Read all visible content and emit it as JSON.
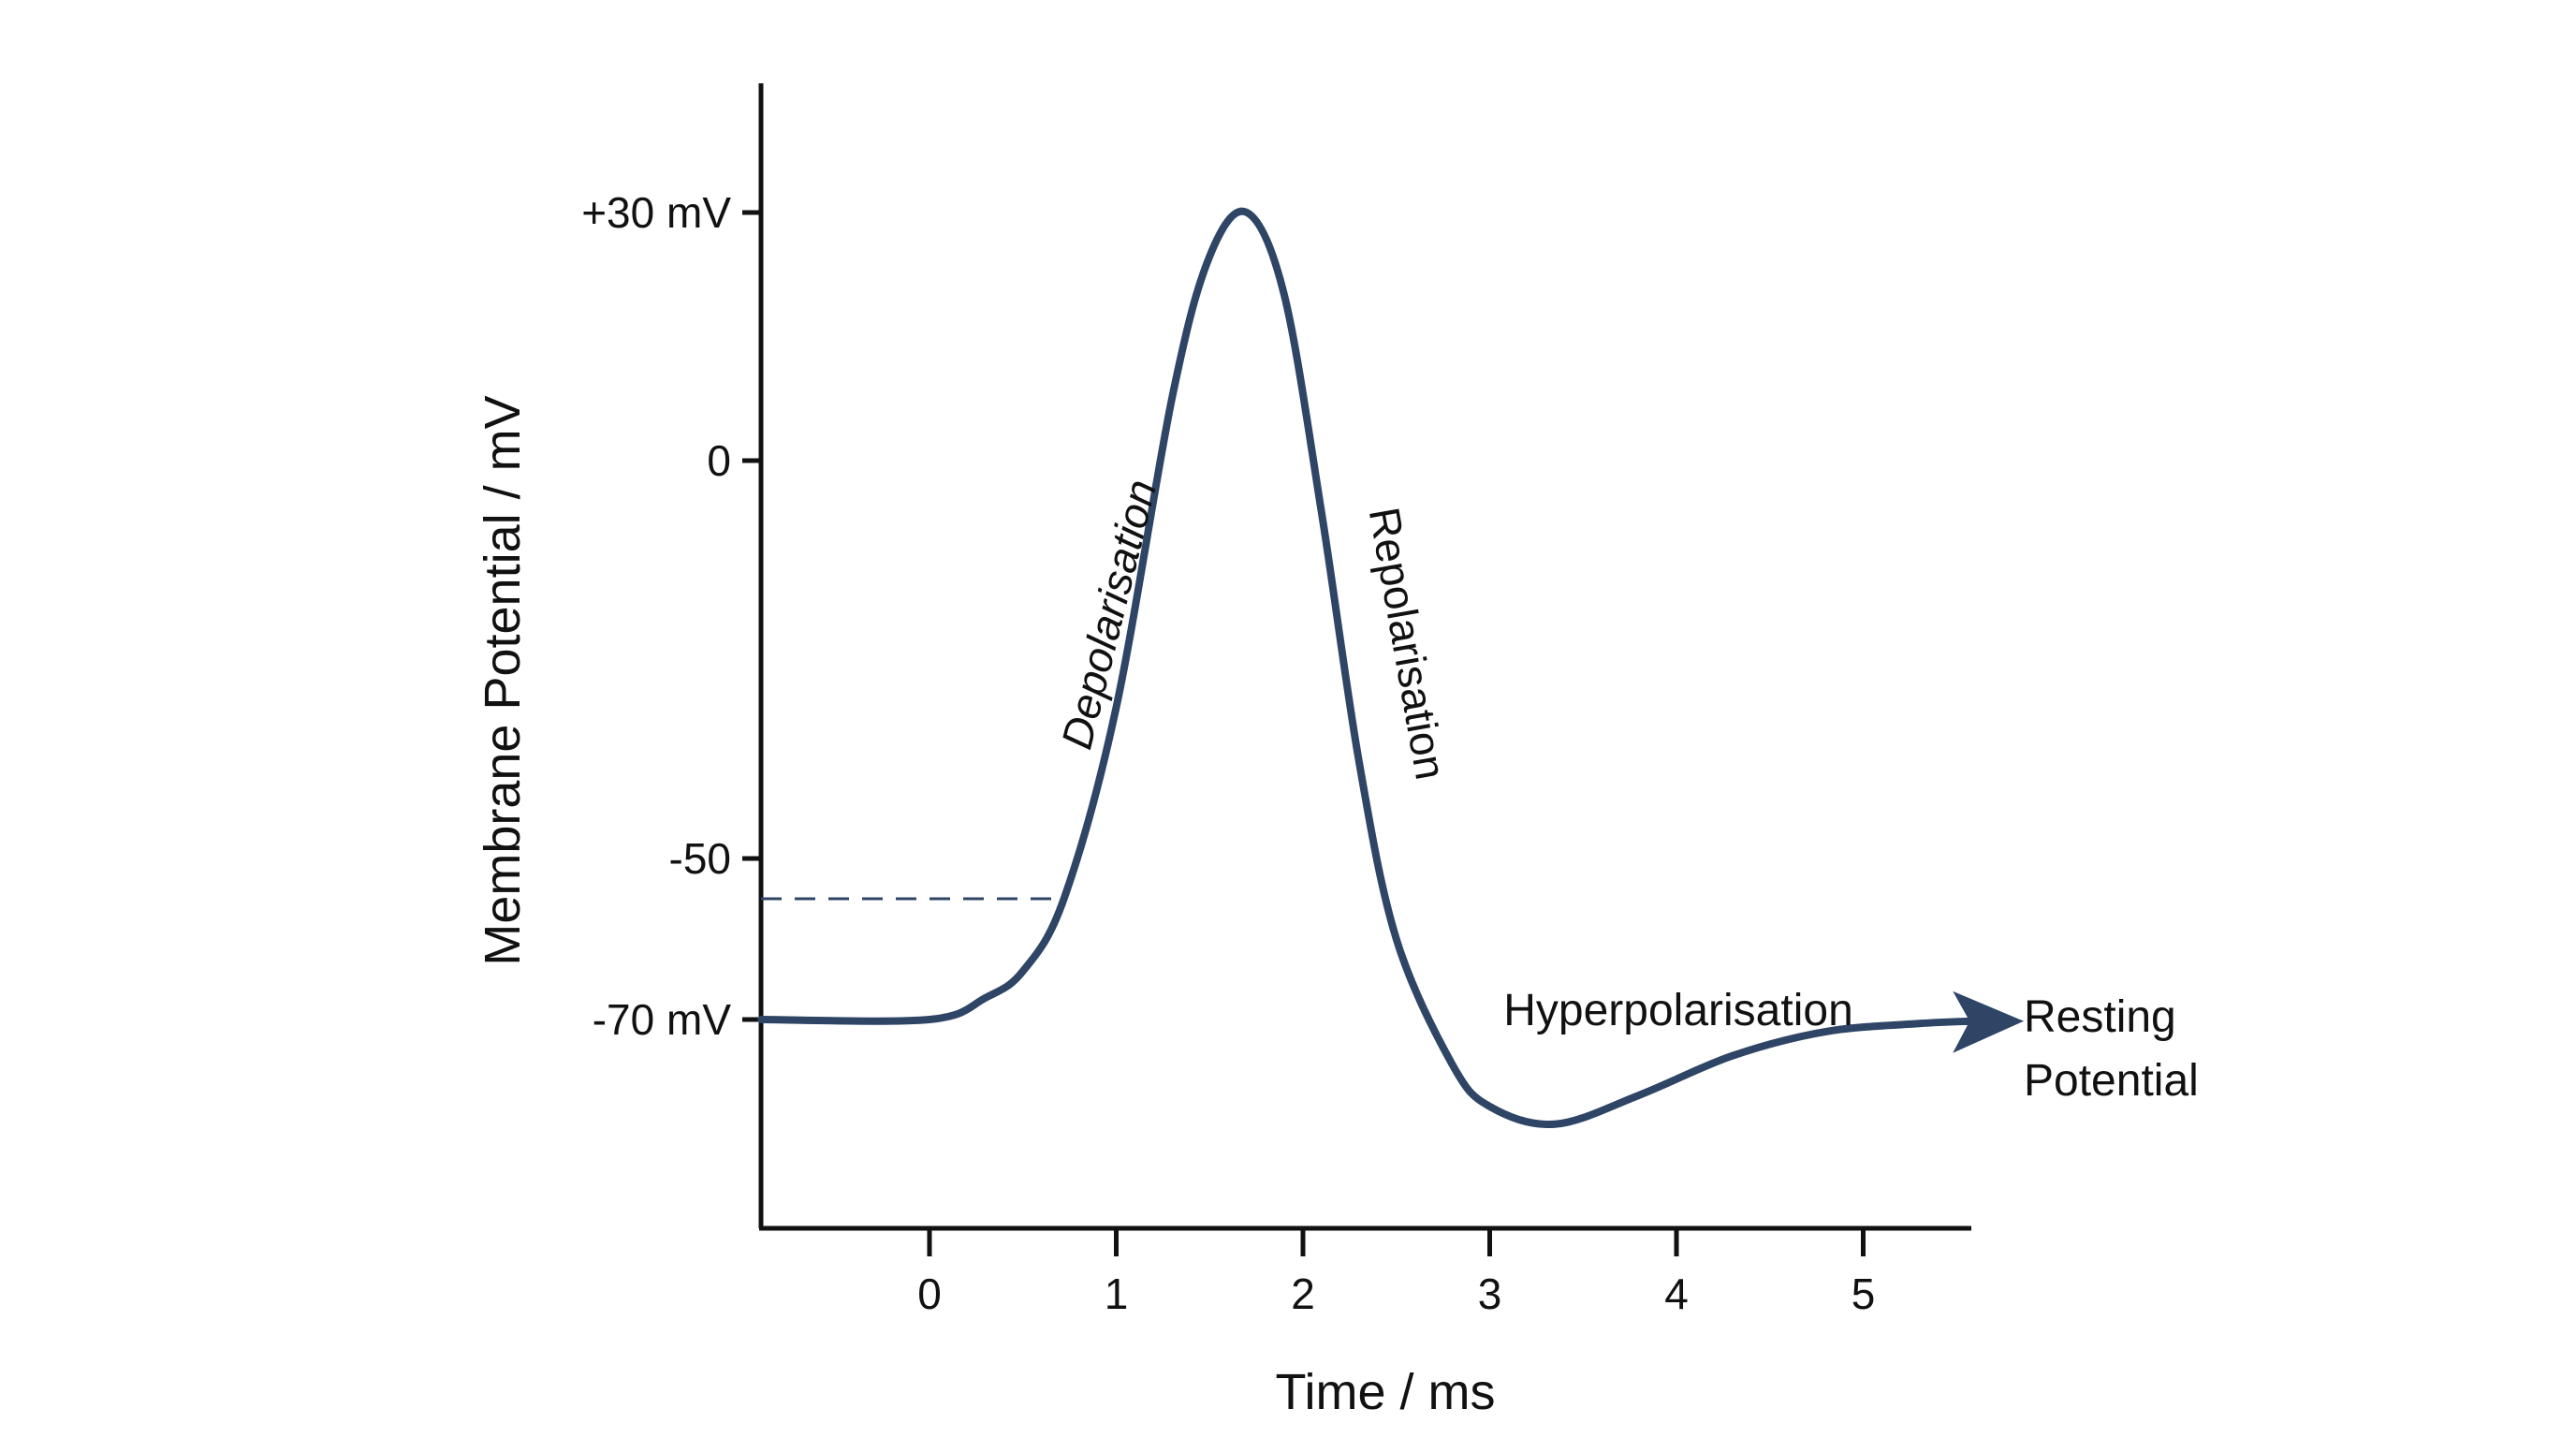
{
  "chart_data": {
    "type": "line",
    "xlabel": "Time / ms",
    "ylabel": "Membrane Potential / mV",
    "xlim": [
      -0.9,
      5.72
    ],
    "x_ticks": [
      0,
      1,
      2,
      3,
      4,
      5
    ],
    "x_tick_labels": [
      "0",
      "1",
      "2",
      "3",
      "4",
      "5"
    ],
    "y_ticks": [
      30,
      0,
      -50,
      -70
    ],
    "y_tick_labels": [
      "+30 mV",
      "0",
      "-50",
      "-70 mV"
    ],
    "threshold_mV": -55,
    "grid": false,
    "line_color": "#2f4566",
    "series": [
      {
        "x": [
          -0.9,
          0,
          0.3,
          0.5,
          0.72,
          1.0,
          1.3,
          1.5,
          1.7,
          1.9,
          2.1,
          2.3,
          2.5,
          2.8,
          3.0,
          3.35,
          3.8,
          4.3,
          4.8,
          5.3,
          5.58
        ],
        "y": [
          -70,
          -70,
          -67.3,
          -64,
          -55,
          -31,
          7.7,
          24.7,
          30,
          20,
          -6.6,
          -37.8,
          -60,
          -75.6,
          -80.8,
          -83,
          -79.4,
          -74.5,
          -71.5,
          -70.5,
          -70.2
        ]
      }
    ],
    "annotations": {
      "depolarisation": "Depolarisation",
      "repolarisation": "Repolarisation",
      "hyperpolarisation": "Hyperpolarisation",
      "resting_line1": "Resting",
      "resting_line2": "Potential"
    }
  }
}
